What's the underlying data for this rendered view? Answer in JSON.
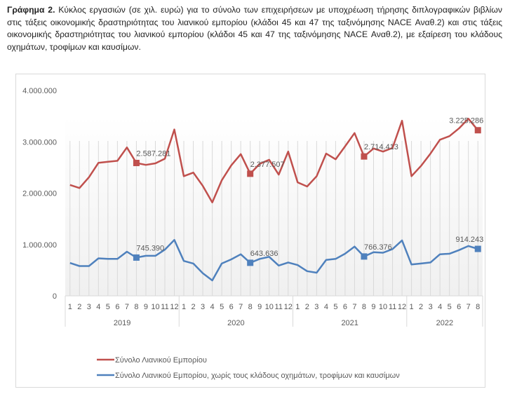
{
  "caption": {
    "label": "Γράφημα 2.",
    "text": " Κύκλος εργασιών (σε χιλ. ευρώ) για το σύνολο των επιχειρήσεων με υποχρέωση τήρησης διπλογραφικών βιβλίων στις τάξεις οικονομικής δραστηριότητας του λιανικού εμπορίου (κλάδοι 45 και 47 της ταξινόμησης NACE Αναθ.2) και στις τάξεις οικονομικής δραστηριότητας του λιανικού εμπορίου (κλάδοι 45 και 47 της ταξινόμησης NACE Αναθ.2), με εξαίρεση του κλάδους οχημάτων, τροφίμων και καυσίμων."
  },
  "chart_data": {
    "type": "line",
    "title": "",
    "xlabel": "",
    "ylabel": "",
    "ylim": [
      0,
      4000000
    ],
    "yticks": [
      0,
      1000000,
      2000000,
      3000000,
      4000000
    ],
    "ytick_labels": [
      "0",
      "1.000.000",
      "2.000.000",
      "3.000.000",
      "4.000.000"
    ],
    "grid": "vertical",
    "legend_position": "bottom",
    "years": [
      {
        "label": "2019",
        "months": [
          "1",
          "2",
          "3",
          "4",
          "5",
          "6",
          "7",
          "8",
          "9",
          "10",
          "11",
          "12"
        ]
      },
      {
        "label": "2020",
        "months": [
          "1",
          "2",
          "3",
          "4",
          "5",
          "6",
          "7",
          "8",
          "9",
          "10",
          "11",
          "12"
        ]
      },
      {
        "label": "2021",
        "months": [
          "1",
          "2",
          "3",
          "4",
          "5",
          "6",
          "7",
          "8",
          "9",
          "10",
          "11",
          "12"
        ]
      },
      {
        "label": "2022",
        "months": [
          "1",
          "2",
          "3",
          "4",
          "5",
          "6",
          "7",
          "8"
        ]
      }
    ],
    "series": [
      {
        "name": "Σύνολο Λιανικού Εμπορίου",
        "color": "#C0504D",
        "values": [
          2160000,
          2100000,
          2310000,
          2590000,
          2610000,
          2630000,
          2890000,
          2587281,
          2550000,
          2580000,
          2670000,
          3240000,
          2330000,
          2400000,
          2140000,
          1820000,
          2250000,
          2540000,
          2760000,
          2377507,
          2570000,
          2650000,
          2360000,
          2810000,
          2210000,
          2130000,
          2330000,
          2770000,
          2660000,
          2910000,
          3170000,
          2714413,
          2870000,
          2810000,
          2880000,
          3410000,
          2330000,
          2530000,
          2770000,
          3040000,
          3110000,
          3260000,
          3450000,
          3225286
        ],
        "highlighted": [
          {
            "index": 7,
            "label": "2.587.281"
          },
          {
            "index": 19,
            "label": "2.377.507"
          },
          {
            "index": 31,
            "label": "2.714.413"
          },
          {
            "index": 43,
            "label": "3.225.286"
          }
        ]
      },
      {
        "name": "Σύνολο Λιανικού Εμπορίου, χωρίς τους κλάδους οχημάτων, τροφίμων και καυσίμων",
        "color": "#4F81BD",
        "values": [
          640000,
          580000,
          580000,
          730000,
          720000,
          720000,
          860000,
          745390,
          780000,
          780000,
          900000,
          1090000,
          680000,
          630000,
          440000,
          300000,
          630000,
          710000,
          810000,
          643636,
          720000,
          760000,
          590000,
          650000,
          600000,
          480000,
          450000,
          700000,
          720000,
          820000,
          960000,
          766376,
          850000,
          840000,
          910000,
          1080000,
          610000,
          630000,
          650000,
          810000,
          820000,
          890000,
          970000,
          914243
        ],
        "highlighted": [
          {
            "index": 7,
            "label": "745.390"
          },
          {
            "index": 19,
            "label": "643.636"
          },
          {
            "index": 31,
            "label": "766.376"
          },
          {
            "index": 43,
            "label": "914.243"
          }
        ]
      }
    ]
  }
}
